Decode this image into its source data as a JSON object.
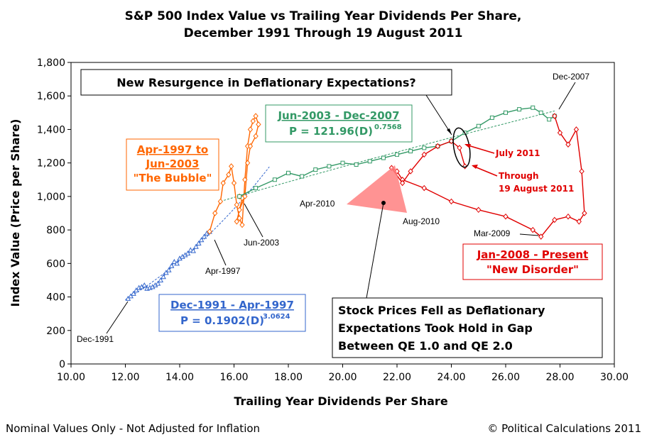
{
  "chart_data": {
    "type": "scatter",
    "title_line1": "S&P 500 Index Value vs Trailing Year Dividends Per Share,",
    "title_line2": "December 1991 Through 19 August 2011",
    "xlabel": "Trailing Year Dividends Per Share",
    "ylabel": "Index Value (Price per Share)",
    "xlim": [
      10,
      30
    ],
    "ylim": [
      0,
      1800
    ],
    "x_ticks": [
      "10.00",
      "12.00",
      "14.00",
      "16.00",
      "18.00",
      "20.00",
      "22.00",
      "24.00",
      "26.00",
      "28.00",
      "30.00"
    ],
    "y_ticks": [
      "0",
      "200",
      "400",
      "600",
      "800",
      "1,000",
      "1,200",
      "1,400",
      "1,600",
      "1,800"
    ],
    "series": [
      {
        "name": "Dec-1991 - Apr-1997",
        "color": "#3366cc",
        "marker": "triangle",
        "points": [
          [
            12.1,
            390
          ],
          [
            12.2,
            405
          ],
          [
            12.3,
            420
          ],
          [
            12.4,
            440
          ],
          [
            12.5,
            455
          ],
          [
            12.6,
            460
          ],
          [
            12.7,
            470
          ],
          [
            12.8,
            450
          ],
          [
            12.9,
            455
          ],
          [
            13.0,
            460
          ],
          [
            13.1,
            470
          ],
          [
            13.2,
            480
          ],
          [
            13.3,
            500
          ],
          [
            13.4,
            520
          ],
          [
            13.5,
            545
          ],
          [
            13.6,
            560
          ],
          [
            13.7,
            585
          ],
          [
            13.8,
            610
          ],
          [
            13.9,
            600
          ],
          [
            14.0,
            630
          ],
          [
            14.1,
            640
          ],
          [
            14.2,
            650
          ],
          [
            14.3,
            660
          ],
          [
            14.4,
            680
          ],
          [
            14.5,
            675
          ],
          [
            14.6,
            700
          ],
          [
            14.7,
            720
          ],
          [
            14.8,
            740
          ],
          [
            14.9,
            760
          ],
          [
            15.0,
            780
          ],
          [
            15.1,
            790
          ]
        ]
      },
      {
        "name": "Apr-1997 to Jun-2003",
        "color": "#ff6600",
        "marker": "diamond",
        "points": [
          [
            15.1,
            790
          ],
          [
            15.3,
            900
          ],
          [
            15.5,
            970
          ],
          [
            15.6,
            1080
          ],
          [
            15.8,
            1130
          ],
          [
            15.9,
            1180
          ],
          [
            16.0,
            1080
          ],
          [
            16.1,
            950
          ],
          [
            16.2,
            870
          ],
          [
            16.3,
            830
          ],
          [
            16.4,
            1100
          ],
          [
            16.5,
            1300
          ],
          [
            16.6,
            1400
          ],
          [
            16.7,
            1450
          ],
          [
            16.8,
            1480
          ],
          [
            16.9,
            1430
          ],
          [
            16.8,
            1360
          ],
          [
            16.6,
            1300
          ],
          [
            16.5,
            1200
          ],
          [
            16.4,
            1000
          ],
          [
            16.2,
            920
          ],
          [
            16.1,
            850
          ],
          [
            16.3,
            990
          ],
          [
            16.2,
            1000
          ]
        ]
      },
      {
        "name": "Jun-2003 - Dec-2007",
        "color": "#339966",
        "marker": "square",
        "points": [
          [
            16.2,
            1000
          ],
          [
            16.8,
            1050
          ],
          [
            17.5,
            1100
          ],
          [
            18.0,
            1140
          ],
          [
            18.5,
            1120
          ],
          [
            19.0,
            1160
          ],
          [
            19.5,
            1180
          ],
          [
            20.0,
            1200
          ],
          [
            20.5,
            1190
          ],
          [
            21.0,
            1210
          ],
          [
            21.5,
            1230
          ],
          [
            22.0,
            1250
          ],
          [
            22.5,
            1270
          ],
          [
            23.0,
            1290
          ],
          [
            23.5,
            1300
          ],
          [
            24.0,
            1330
          ],
          [
            24.5,
            1380
          ],
          [
            25.0,
            1420
          ],
          [
            25.5,
            1470
          ],
          [
            26.0,
            1500
          ],
          [
            26.5,
            1520
          ],
          [
            27.0,
            1530
          ],
          [
            27.3,
            1500
          ],
          [
            27.6,
            1460
          ],
          [
            27.8,
            1480
          ]
        ]
      },
      {
        "name": "Jan-2008 - Present",
        "color": "#e00000",
        "marker": "diamond",
        "points": [
          [
            27.8,
            1480
          ],
          [
            28.0,
            1380
          ],
          [
            28.3,
            1310
          ],
          [
            28.6,
            1400
          ],
          [
            28.8,
            1150
          ],
          [
            28.9,
            900
          ],
          [
            28.7,
            850
          ],
          [
            28.3,
            880
          ],
          [
            27.8,
            860
          ],
          [
            27.3,
            760
          ],
          [
            27.0,
            800
          ],
          [
            26.0,
            880
          ],
          [
            25.0,
            920
          ],
          [
            24.0,
            970
          ],
          [
            23.0,
            1050
          ],
          [
            22.2,
            1100
          ],
          [
            22.0,
            1150
          ],
          [
            21.8,
            1170
          ],
          [
            22.2,
            1080
          ],
          [
            22.5,
            1150
          ],
          [
            23.0,
            1250
          ],
          [
            23.5,
            1300
          ],
          [
            24.0,
            1330
          ],
          [
            24.3,
            1290
          ],
          [
            24.5,
            1180
          ]
        ]
      }
    ],
    "fits": [
      {
        "label": "Dec-1991 - Apr-1997",
        "formula": "P = 0.1902(D)",
        "exponent": "3.0624",
        "color": "#3366cc"
      },
      {
        "label": "Jun-2003 - Dec-2007",
        "formula": "P = 121.96(D)",
        "exponent": "0.7568",
        "color": "#339966"
      }
    ],
    "annotations": {
      "bubble_l1": "Apr-1997 to",
      "bubble_l2": "Jun-2003",
      "bubble_l3": "\"The Bubble\"",
      "disorder_l1": "Jan-2008 - Present",
      "disorder_l2": "\"New Disorder\"",
      "resurgence": "New Resurgence in Deflationary Expectations?",
      "gap_l1": "Stock Prices Fell as Deflationary",
      "gap_l2": "Expectations Took Hold in Gap",
      "gap_l3": "Between QE 1.0 and QE 2.0",
      "july": "July 2011",
      "through_l1": "Through",
      "through_l2": "19 August 2011",
      "dec1991": "Dec-1991",
      "apr1997": "Apr-1997",
      "jun2003": "Jun-2003",
      "dec2007": "Dec-2007",
      "apr2010": "Apr-2010",
      "aug2010": "Aug-2010",
      "mar2009": "Mar-2009"
    },
    "footer_left": "Nominal Values Only - Not Adjusted for Inflation",
    "footer_right": "© Political Calculations 2011"
  }
}
